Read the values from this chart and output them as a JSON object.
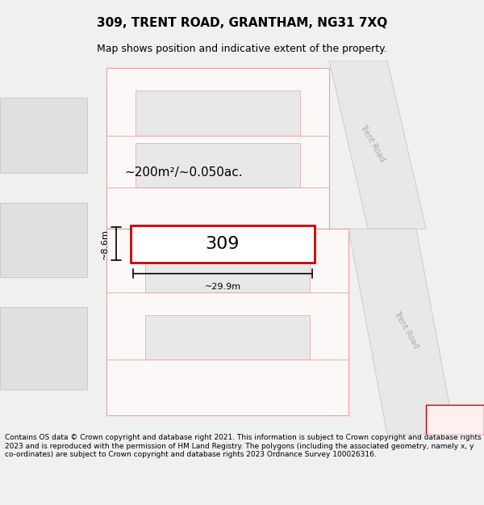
{
  "title": "309, TRENT ROAD, GRANTHAM, NG31 7XQ",
  "subtitle": "Map shows position and indicative extent of the property.",
  "footer": "Contains OS data © Crown copyright and database right 2021. This information is subject to Crown copyright and database rights 2023 and is reproduced with the permission of HM Land Registry. The polygons (including the associated geometry, namely x, y co-ordinates) are subject to Crown copyright and database rights 2023 Ordnance Survey 100026316.",
  "bg_color": "#f5f5f5",
  "map_bg": "#ffffff",
  "road_color": "#d0d0d0",
  "plot_line_color": "#e8a0a0",
  "highlight_color": "#cc0000",
  "highlight_fill": "#ffffff",
  "dim_line_color": "#000000",
  "road_text_color": "#b0b0b0",
  "annotation_color": "#000000",
  "property_label": "309",
  "area_label": "~200m²/~0.050ac.",
  "width_label": "~29.9m",
  "height_label": "~8.6m",
  "map_xlim": [
    0,
    100
  ],
  "map_ylim": [
    0,
    100
  ]
}
